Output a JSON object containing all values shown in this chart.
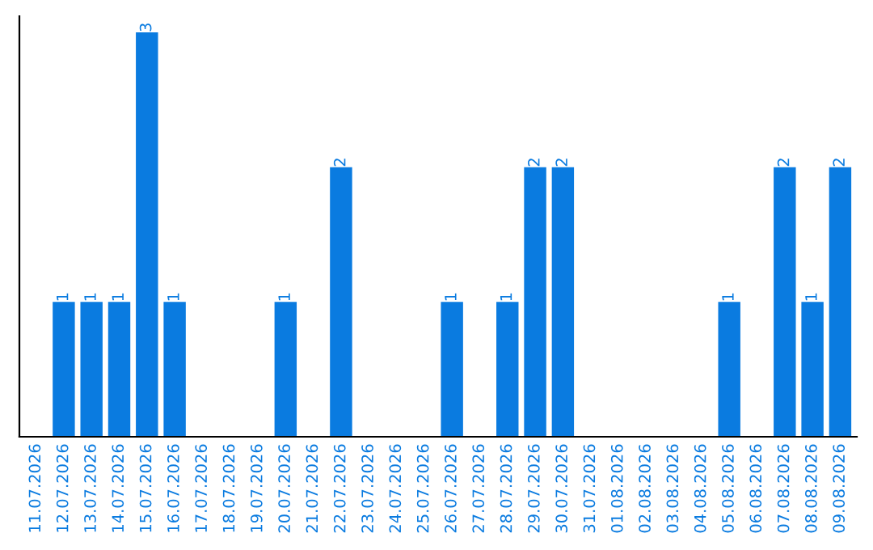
{
  "chart_data": {
    "type": "bar",
    "categories": [
      "11.07.2026",
      "12.07.2026",
      "13.07.2026",
      "14.07.2026",
      "15.07.2026",
      "16.07.2026",
      "17.07.2026",
      "18.07.2026",
      "19.07.2026",
      "20.07.2026",
      "21.07.2026",
      "22.07.2026",
      "23.07.2026",
      "24.07.2026",
      "25.07.2026",
      "26.07.2026",
      "27.07.2026",
      "28.07.2026",
      "29.07.2026",
      "30.07.2026",
      "31.07.2026",
      "01.08.2026",
      "02.08.2026",
      "03.08.2026",
      "04.08.2026",
      "05.08.2026",
      "06.08.2026",
      "07.08.2026",
      "08.08.2026",
      "09.08.2026"
    ],
    "values": [
      0,
      1,
      1,
      1,
      3,
      1,
      0,
      0,
      0,
      1,
      0,
      2,
      0,
      0,
      0,
      1,
      0,
      1,
      2,
      2,
      0,
      0,
      0,
      0,
      0,
      1,
      0,
      2,
      1,
      2
    ],
    "value_labels": [
      null,
      "1",
      "1",
      "1",
      "3",
      "1",
      null,
      null,
      null,
      "1",
      null,
      "2",
      null,
      null,
      null,
      "1",
      null,
      "1",
      "2",
      "2",
      null,
      null,
      null,
      null,
      null,
      "1",
      null,
      "2",
      "1",
      "2"
    ],
    "color": "#0a7be0",
    "tick_labels": "x",
    "grid": false,
    "legend": false
  }
}
